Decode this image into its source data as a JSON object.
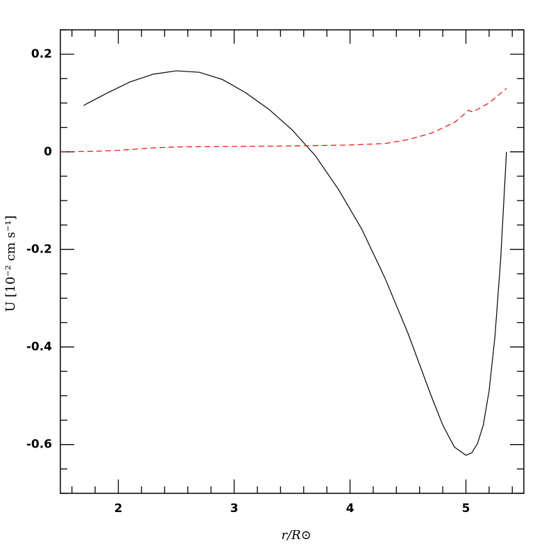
{
  "chart_data": {
    "type": "line",
    "x_label": "r/R⊙",
    "y_label": "U [10⁻² cm s⁻¹]",
    "xlim": [
      1.5,
      5.5
    ],
    "ylim": [
      -0.7,
      0.25
    ],
    "xticks": [
      2,
      3,
      4,
      5
    ],
    "yticks": [
      0.2,
      0,
      -0.2,
      -0.4,
      -0.6
    ],
    "xminorticks": [
      1.6,
      1.8,
      2.2,
      2.4,
      2.6,
      2.8,
      3.2,
      3.4,
      3.6,
      3.8,
      4.2,
      4.4,
      4.6,
      4.8,
      5.2,
      5.4
    ],
    "yminorticks": [
      0.25,
      0.15,
      0.1,
      0.05,
      -0.05,
      -0.1,
      -0.15,
      -0.25,
      -0.3,
      -0.35,
      -0.45,
      -0.5,
      -0.55,
      -0.65,
      -0.7
    ],
    "series": [
      {
        "color": "#000000",
        "dash": false,
        "x": [
          1.7,
          1.9,
          2.1,
          2.3,
          2.5,
          2.7,
          2.9,
          3.1,
          3.3,
          3.5,
          3.7,
          3.9,
          4.1,
          4.3,
          4.5,
          4.7,
          4.8,
          4.9,
          5.0,
          5.05,
          5.1,
          5.15,
          5.2,
          5.25,
          5.3,
          5.35
        ],
        "values": [
          0.095,
          0.12,
          0.143,
          0.159,
          0.166,
          0.163,
          0.148,
          0.121,
          0.087,
          0.045,
          -0.008,
          -0.077,
          -0.158,
          -0.258,
          -0.372,
          -0.5,
          -0.56,
          -0.605,
          -0.622,
          -0.617,
          -0.598,
          -0.56,
          -0.49,
          -0.38,
          -0.22,
          0.0
        ]
      },
      {
        "color": "#ff0000",
        "dash": true,
        "x": [
          1.5,
          1.8,
          2.0,
          2.3,
          2.5,
          3.0,
          3.5,
          4.0,
          4.3,
          4.5,
          4.7,
          4.9,
          5.0,
          5.02,
          5.06,
          5.2,
          5.35
        ],
        "values": [
          0.0,
          0.001,
          0.003,
          0.008,
          0.01,
          0.011,
          0.012,
          0.014,
          0.017,
          0.025,
          0.038,
          0.06,
          0.08,
          0.085,
          0.082,
          0.1,
          0.13
        ]
      }
    ]
  }
}
